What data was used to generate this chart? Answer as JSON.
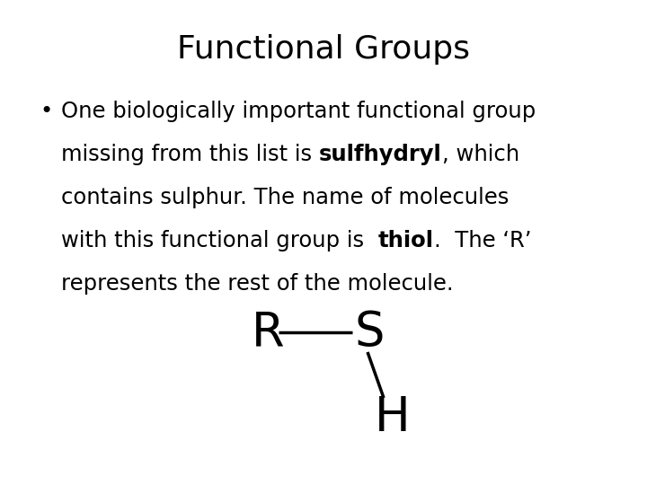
{
  "title": "Functional Groups",
  "title_fontsize": 26,
  "background_color": "#ffffff",
  "text_color": "#000000",
  "body_fontsize": 17.5,
  "molecule_fontsize": 38,
  "line1": "One biologically important functional group",
  "line2_pre": "missing from this list is ",
  "line2_bold": "sulfhydryl",
  "line2_post": ", which",
  "line3": "contains sulphur. The name of molecules",
  "line4_pre": "with this functional group is  ",
  "line4_bold": "thiol",
  "line4_post": ".  The ‘R’",
  "line5": "represents the rest of the molecule."
}
